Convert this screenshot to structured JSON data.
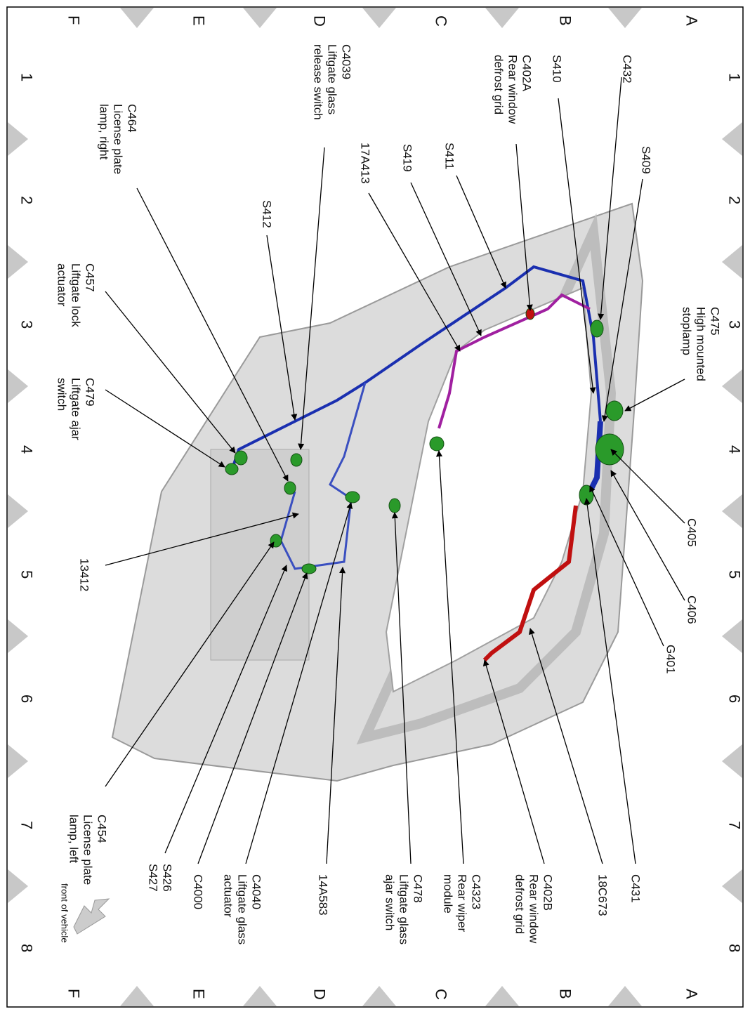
{
  "grid": {
    "columns": [
      "1",
      "2",
      "3",
      "4",
      "5",
      "6",
      "7",
      "8"
    ],
    "rows": [
      "A",
      "B",
      "C",
      "D",
      "E",
      "F"
    ]
  },
  "labels": [
    {
      "lines": [
        "C432"
      ]
    },
    {
      "lines": [
        "S409"
      ]
    },
    {
      "lines": [
        "C475",
        "High mounted",
        "stoplamp"
      ]
    },
    {
      "lines": [
        "S410"
      ]
    },
    {
      "lines": [
        "C402A",
        "Rear window",
        "defrost grid"
      ]
    },
    {
      "lines": [
        "S411"
      ]
    },
    {
      "lines": [
        "S419"
      ]
    },
    {
      "lines": [
        "17A413"
      ]
    },
    {
      "lines": [
        "C4039",
        "Liftgate glass",
        "release switch"
      ]
    },
    {
      "lines": [
        "C464",
        "License plate",
        "lamp, right"
      ]
    },
    {
      "lines": [
        "S412"
      ]
    },
    {
      "lines": [
        "C457",
        "Liftgate lock",
        "actuator"
      ]
    },
    {
      "lines": [
        "C479",
        "Liftgate ajar",
        "switch"
      ]
    },
    {
      "lines": [
        "13412"
      ]
    },
    {
      "lines": [
        "C405"
      ]
    },
    {
      "lines": [
        "C406"
      ]
    },
    {
      "lines": [
        "G401"
      ]
    },
    {
      "lines": [
        "C431"
      ]
    },
    {
      "lines": [
        "18C673"
      ]
    },
    {
      "lines": [
        "C402B",
        "Rear window",
        "defrost grid"
      ]
    },
    {
      "lines": [
        "C4323",
        "Rear wiper",
        "module"
      ]
    },
    {
      "lines": [
        "C478",
        "Liftgate glass",
        "ajar switch"
      ]
    },
    {
      "lines": [
        "14A583"
      ]
    },
    {
      "lines": [
        "C4040",
        "Liftgate glass",
        "actuator"
      ]
    },
    {
      "lines": [
        "C4000"
      ]
    },
    {
      "lines": [
        "S426",
        "S427"
      ]
    },
    {
      "lines": [
        "C454",
        "License plate",
        "lamp, left"
      ]
    },
    {
      "lines": [
        "front of vehicle"
      ]
    }
  ]
}
